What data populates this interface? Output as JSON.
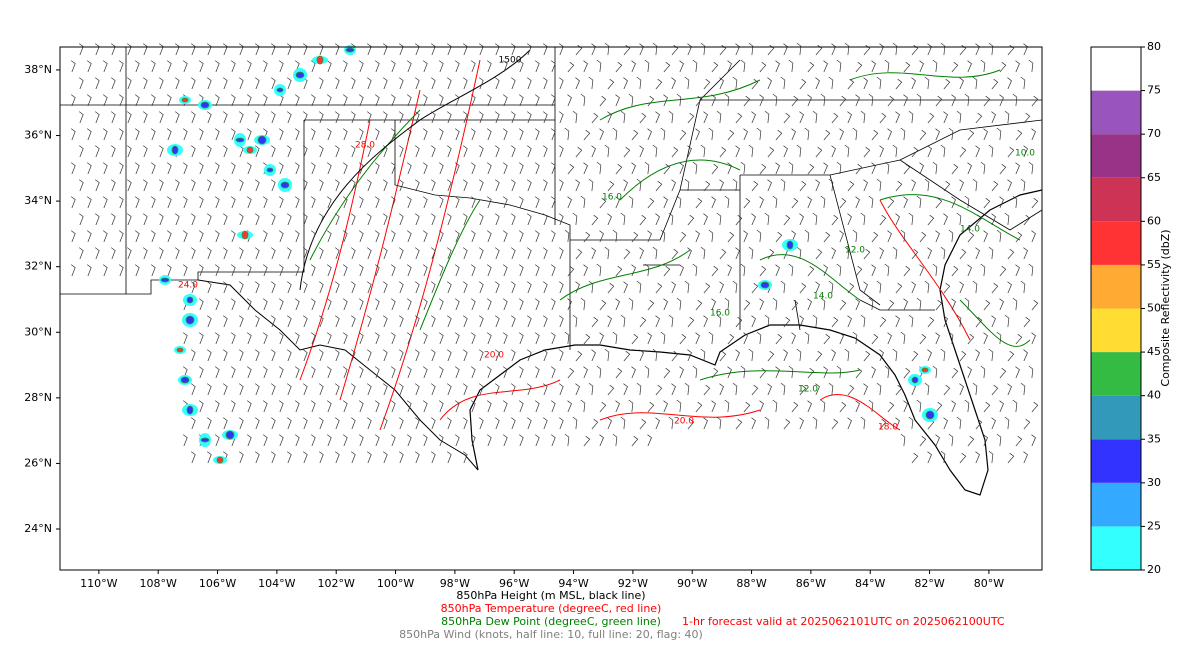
{
  "map": {
    "lat_ticks": [
      {
        "value": 24,
        "label": "24°N"
      },
      {
        "value": 26,
        "label": "26°N"
      },
      {
        "value": 28,
        "label": "28°N"
      },
      {
        "value": 30,
        "label": "30°N"
      },
      {
        "value": 32,
        "label": "32°N"
      },
      {
        "value": 34,
        "label": "34°N"
      },
      {
        "value": 36,
        "label": "36°N"
      },
      {
        "value": 38,
        "label": "38°N"
      }
    ],
    "lon_ticks": [
      {
        "value": -110,
        "label": "110°W"
      },
      {
        "value": -108,
        "label": "108°W"
      },
      {
        "value": -106,
        "label": "106°W"
      },
      {
        "value": -104,
        "label": "104°W"
      },
      {
        "value": -102,
        "label": "102°W"
      },
      {
        "value": -100,
        "label": "100°W"
      },
      {
        "value": -98,
        "label": "98°W"
      },
      {
        "value": -96,
        "label": "96°W"
      },
      {
        "value": -94,
        "label": "94°W"
      },
      {
        "value": -92,
        "label": "92°W"
      },
      {
        "value": -90,
        "label": "90°W"
      },
      {
        "value": -88,
        "label": "88°W"
      },
      {
        "value": -86,
        "label": "86°W"
      },
      {
        "value": -84,
        "label": "84°W"
      },
      {
        "value": -82,
        "label": "82°W"
      },
      {
        "value": -80,
        "label": "80°W"
      }
    ],
    "contour_labels": [
      {
        "text": "20.0",
        "color": "#ff0000"
      },
      {
        "text": "20.0",
        "color": "#ff0000"
      },
      {
        "text": "18.0",
        "color": "#ff0000"
      },
      {
        "text": "24.0",
        "color": "#ff0000"
      },
      {
        "text": "28.0",
        "color": "#ff0000"
      },
      {
        "text": "16.0",
        "color": "#008000"
      },
      {
        "text": "14.0",
        "color": "#008000"
      },
      {
        "text": "12.0",
        "color": "#008000"
      },
      {
        "text": "16.0",
        "color": "#008000"
      },
      {
        "text": "14.0",
        "color": "#008000"
      },
      {
        "text": "10.0",
        "color": "#008000"
      },
      {
        "text": "12.0",
        "color": "#008000"
      },
      {
        "text": "1500",
        "color": "#000000"
      }
    ]
  },
  "colorbar": {
    "label": "Composite Reflectivity (dbZ)",
    "ticks": [
      20,
      25,
      30,
      35,
      40,
      45,
      50,
      55,
      60,
      65,
      70,
      75,
      80
    ],
    "colors": [
      "#33ffff",
      "#33aaff",
      "#3333ff",
      "#3399bb",
      "#33bb44",
      "#ffdd33",
      "#ffaa33",
      "#ff3333",
      "#cc3355",
      "#993388",
      "#9955bb",
      "#ffffff"
    ]
  },
  "caption": [
    {
      "text": "850hPa Height (m MSL, black line)",
      "color": "#000000"
    },
    {
      "text": "850hPa Temperature (degreeC, red line)",
      "color": "#ff0000"
    },
    {
      "text": "850hPa Dew Point (degreeC, green line)",
      "color": "#008000"
    },
    {
      "text": "850hPa Wind (knots, half line: 10, full line: 20, flag: 40)",
      "color": "#808080"
    }
  ],
  "forecast_note": {
    "text": "1-hr forecast valid at 2025062101UTC on 2025062100UTC",
    "color": "#ff0000"
  }
}
